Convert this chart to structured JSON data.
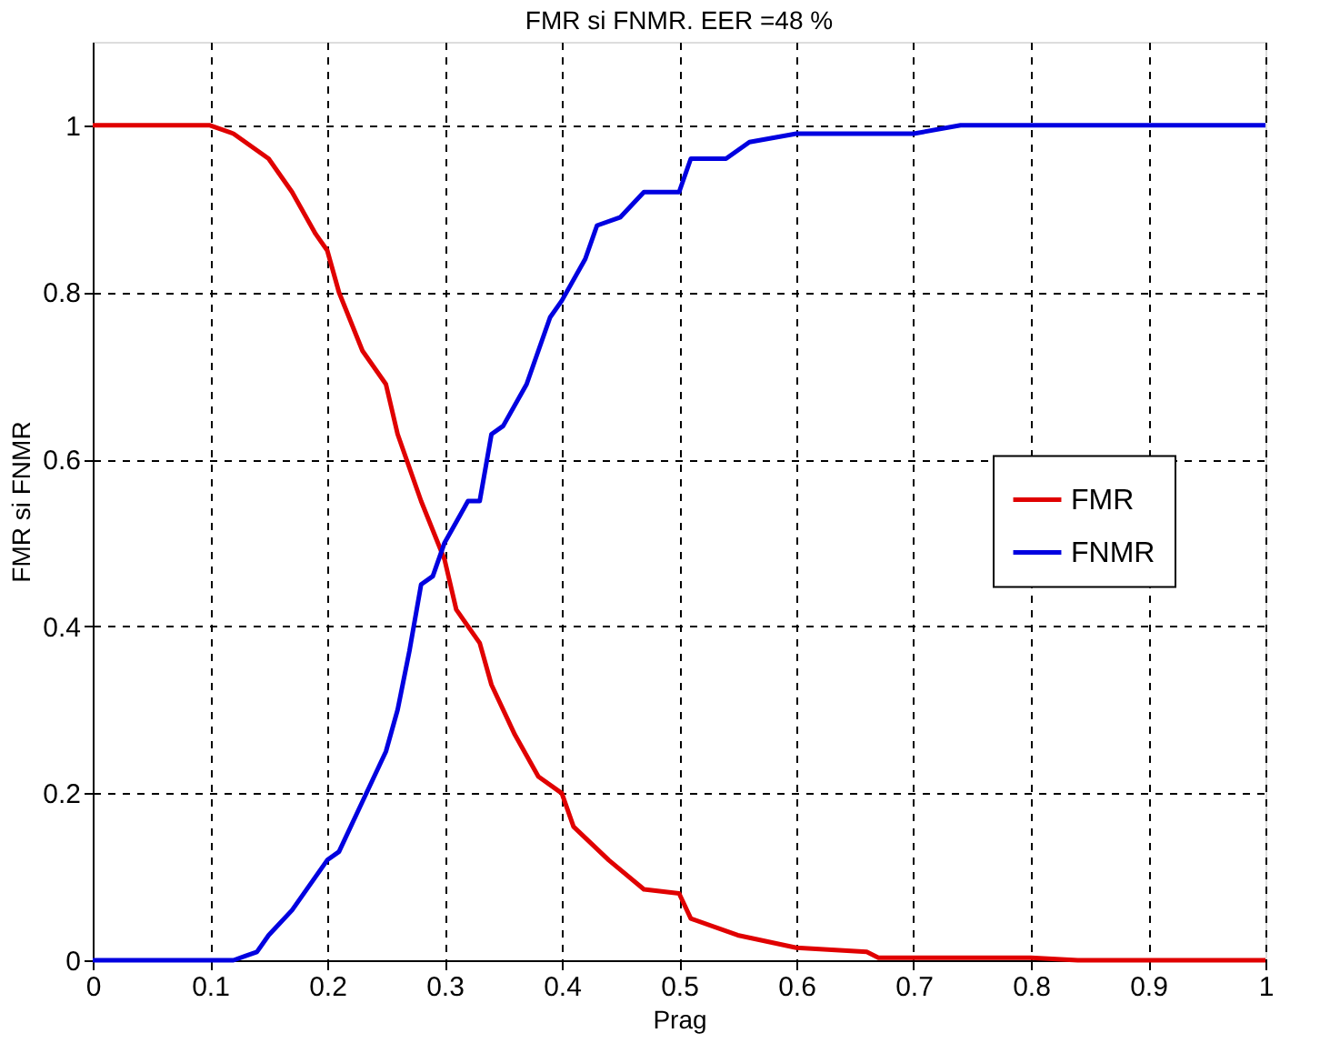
{
  "chart_data": {
    "type": "line",
    "title": "FMR si FNMR. EER =48 %",
    "xlabel": "Prag",
    "ylabel": "FMR si FNMR",
    "xlim": [
      0,
      1
    ],
    "xticks": [
      0,
      0.1,
      0.2,
      0.3,
      0.4,
      0.5,
      0.6,
      0.7,
      0.8,
      0.9,
      1
    ],
    "ylim": [
      0,
      1.1
    ],
    "yticks": [
      0,
      0.2,
      0.4,
      0.6,
      0.8,
      1
    ],
    "grid": true,
    "legend": "right",
    "line_style": "solid",
    "series": [
      {
        "name": "FMR",
        "color": "#e00000",
        "x": [
          0,
          0.1,
          0.12,
          0.15,
          0.17,
          0.19,
          0.2,
          0.21,
          0.23,
          0.25,
          0.26,
          0.28,
          0.3,
          0.31,
          0.33,
          0.34,
          0.36,
          0.38,
          0.4,
          0.41,
          0.44,
          0.47,
          0.5,
          0.51,
          0.55,
          0.6,
          0.66,
          0.67,
          0.8,
          0.84,
          1
        ],
        "values": [
          1,
          1,
          0.99,
          0.96,
          0.92,
          0.87,
          0.85,
          0.8,
          0.73,
          0.69,
          0.63,
          0.55,
          0.48,
          0.42,
          0.38,
          0.33,
          0.27,
          0.22,
          0.2,
          0.16,
          0.12,
          0.085,
          0.08,
          0.05,
          0.03,
          0.015,
          0.01,
          0.003,
          0.003,
          0,
          0
        ]
      },
      {
        "name": "FNMR",
        "color": "#0000e0",
        "x": [
          0,
          0.12,
          0.13,
          0.14,
          0.15,
          0.17,
          0.2,
          0.21,
          0.23,
          0.25,
          0.26,
          0.27,
          0.28,
          0.29,
          0.3,
          0.32,
          0.33,
          0.34,
          0.35,
          0.37,
          0.39,
          0.4,
          0.42,
          0.43,
          0.45,
          0.47,
          0.5,
          0.51,
          0.54,
          0.56,
          0.6,
          0.7,
          0.74,
          1
        ],
        "values": [
          0,
          0,
          0.005,
          0.01,
          0.03,
          0.06,
          0.12,
          0.13,
          0.19,
          0.25,
          0.3,
          0.37,
          0.45,
          0.46,
          0.5,
          0.55,
          0.55,
          0.63,
          0.64,
          0.69,
          0.77,
          0.79,
          0.84,
          0.88,
          0.89,
          0.92,
          0.92,
          0.96,
          0.96,
          0.98,
          0.99,
          0.99,
          1,
          1
        ]
      }
    ]
  }
}
